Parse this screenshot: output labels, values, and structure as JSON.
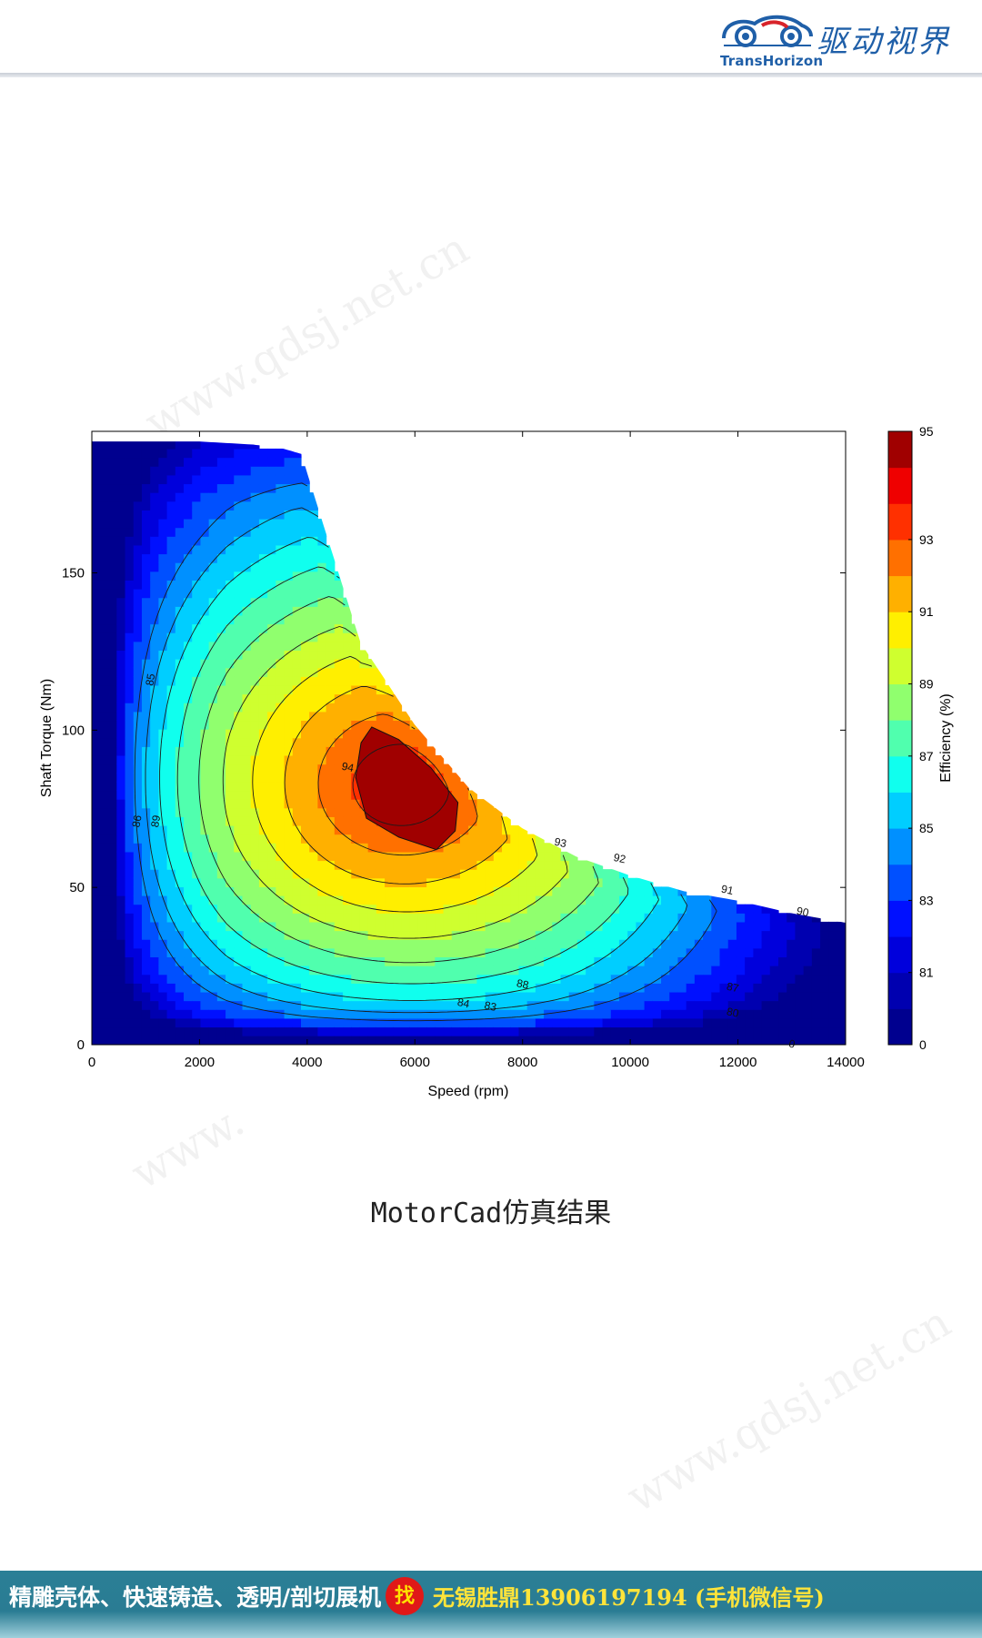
{
  "header": {
    "logo_sub": "TransHorizon",
    "logo_cn": "驱动视界",
    "colors": {
      "brand_blue": "#1f5fa8",
      "brand_red": "#d8232a"
    }
  },
  "watermarks": [
    "www.qdsj.net.cn",
    "www.",
    "www.qdsj.net.cn"
  ],
  "chart_data": {
    "type": "heatmap",
    "subtype": "contour efficiency map",
    "title": "",
    "xlabel": "Speed (rpm)",
    "ylabel": "Shaft Torque (Nm)",
    "colorbar_label": "Efficiency (%)",
    "xlim": [
      0,
      14000
    ],
    "ylim": [
      0,
      195
    ],
    "x_ticks": [
      0,
      2000,
      4000,
      6000,
      8000,
      10000,
      12000,
      14000
    ],
    "y_ticks": [
      0,
      50,
      100,
      150
    ],
    "colorbar_ticks": [
      "95",
      "93",
      "91",
      "89",
      "87",
      "85",
      "83",
      "81",
      "0"
    ],
    "colorbar_levels": [
      0,
      80,
      81,
      82,
      83,
      84,
      85,
      86,
      87,
      88,
      89,
      90,
      91,
      92,
      93,
      94,
      95
    ],
    "colorbar_colors": [
      "#00008f",
      "#0000b0",
      "#0000dc",
      "#0010ff",
      "#0050ff",
      "#0090ff",
      "#00ceff",
      "#10ffee",
      "#50ffae",
      "#90ff6e",
      "#cfff2f",
      "#ffef00",
      "#ffb000",
      "#ff7000",
      "#ff3000",
      "#ef0000",
      "#a00000"
    ],
    "max_torque_envelope": {
      "speed": [
        0,
        500,
        1000,
        2000,
        3000,
        3500,
        3900,
        4300,
        5000,
        6000,
        7000,
        8000,
        9000,
        10000,
        11000,
        12000,
        13000,
        14000
      ],
      "torque": [
        192,
        192,
        192,
        192,
        191,
        190,
        188,
        166,
        128,
        102,
        82,
        69,
        60,
        54,
        49,
        46,
        42,
        39
      ]
    },
    "peak_region": {
      "efficiency_min": 94,
      "speed": [
        5200,
        5700,
        6300,
        6800,
        6750,
        6400,
        5700,
        5100,
        4900,
        5000
      ],
      "torque": [
        101,
        97,
        88,
        77,
        68,
        62,
        66,
        72,
        85,
        96
      ]
    },
    "contour_labels": [
      {
        "text": "94",
        "x": 4750,
        "y": 88
      },
      {
        "text": "93",
        "x": 8700,
        "y": 64
      },
      {
        "text": "92",
        "x": 9800,
        "y": 59
      },
      {
        "text": "91",
        "x": 11800,
        "y": 49
      },
      {
        "text": "90",
        "x": 13200,
        "y": 42
      },
      {
        "text": "89",
        "x": 1200,
        "y": 71
      },
      {
        "text": "88",
        "x": 8000,
        "y": 19
      },
      {
        "text": "87",
        "x": 11900,
        "y": 18
      },
      {
        "text": "86",
        "x": 850,
        "y": 71
      },
      {
        "text": "85",
        "x": 1100,
        "y": 116
      },
      {
        "text": "84",
        "x": 6900,
        "y": 13
      },
      {
        "text": "83",
        "x": 7400,
        "y": 12
      },
      {
        "text": "80",
        "x": 11900,
        "y": 10
      },
      {
        "text": "0",
        "x": 13000,
        "y": 0
      }
    ],
    "grid": false,
    "colorbar_position": "right"
  },
  "caption": {
    "prefix": "MotorCad",
    "suffix": "仿真结果"
  },
  "footer": {
    "left_text": "精雕壳体、快速铸造、透明/剖切展机",
    "badge": "找",
    "right_text": "无锡胜鼎13906197194 (手机微信号)"
  }
}
